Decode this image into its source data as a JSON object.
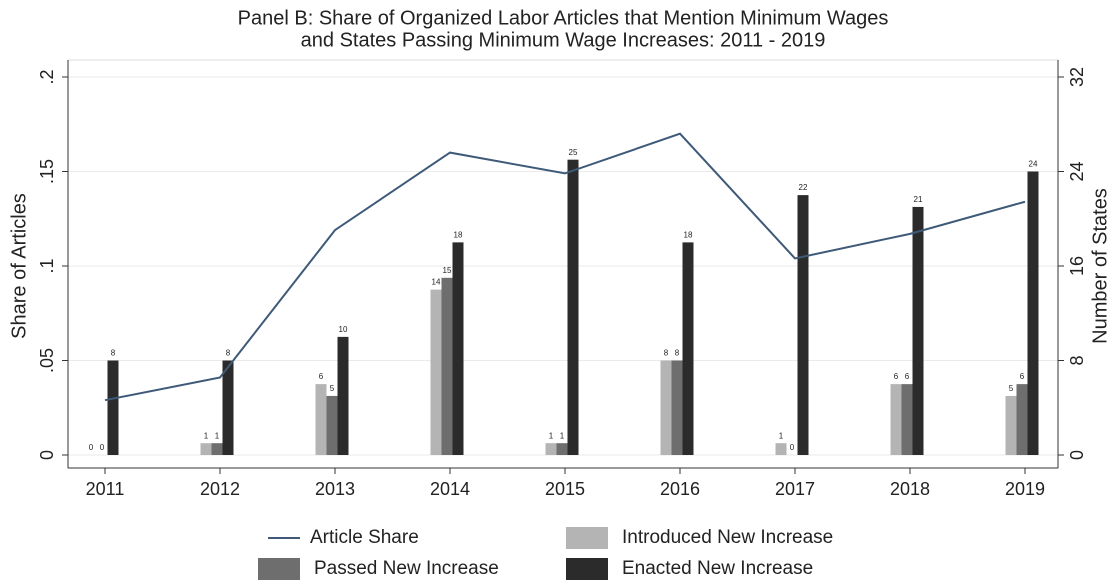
{
  "chart_data": {
    "type": "bar-line",
    "title": [
      "Panel B: Share of Organized Labor Articles that Mention Minimum Wages",
      "and States Passing Minimum Wage Increases: 2011 - 2019"
    ],
    "categories": [
      "2011",
      "2012",
      "2013",
      "2014",
      "2015",
      "2016",
      "2017",
      "2018",
      "2019"
    ],
    "ylabel": "Share of Articles",
    "y2label": "Number of States",
    "ylim": [
      0,
      0.2
    ],
    "yticks": [
      {
        "value": 0,
        "label": "0"
      },
      {
        "value": 0.05,
        "label": ".05"
      },
      {
        "value": 0.1,
        "label": ".1"
      },
      {
        "value": 0.15,
        "label": ".15"
      },
      {
        "value": 0.2,
        "label": ".2"
      }
    ],
    "y2lim": [
      0,
      32
    ],
    "y2ticks": [
      0,
      8,
      16,
      24,
      32
    ],
    "series": [
      {
        "name": "Article Share",
        "type": "line",
        "color": "#3e5a78",
        "values": [
          0.029,
          0.041,
          0.119,
          0.16,
          0.149,
          0.17,
          0.104,
          0.117,
          0.134
        ]
      },
      {
        "name": "Introduced New Increase",
        "type": "bar",
        "axis": "y2",
        "color": "#b4b4b4",
        "values": [
          0,
          1,
          6,
          14,
          1,
          8,
          1,
          6,
          5
        ]
      },
      {
        "name": "Passed New Increase",
        "type": "bar",
        "axis": "y2",
        "color": "#6e6e6e",
        "values": [
          0,
          1,
          5,
          15,
          1,
          8,
          0,
          6,
          6
        ]
      },
      {
        "name": "Enacted New Increase",
        "type": "bar",
        "axis": "y2",
        "color": "#2b2b2b",
        "values": [
          8,
          8,
          10,
          18,
          25,
          18,
          22,
          21,
          24
        ]
      }
    ]
  }
}
